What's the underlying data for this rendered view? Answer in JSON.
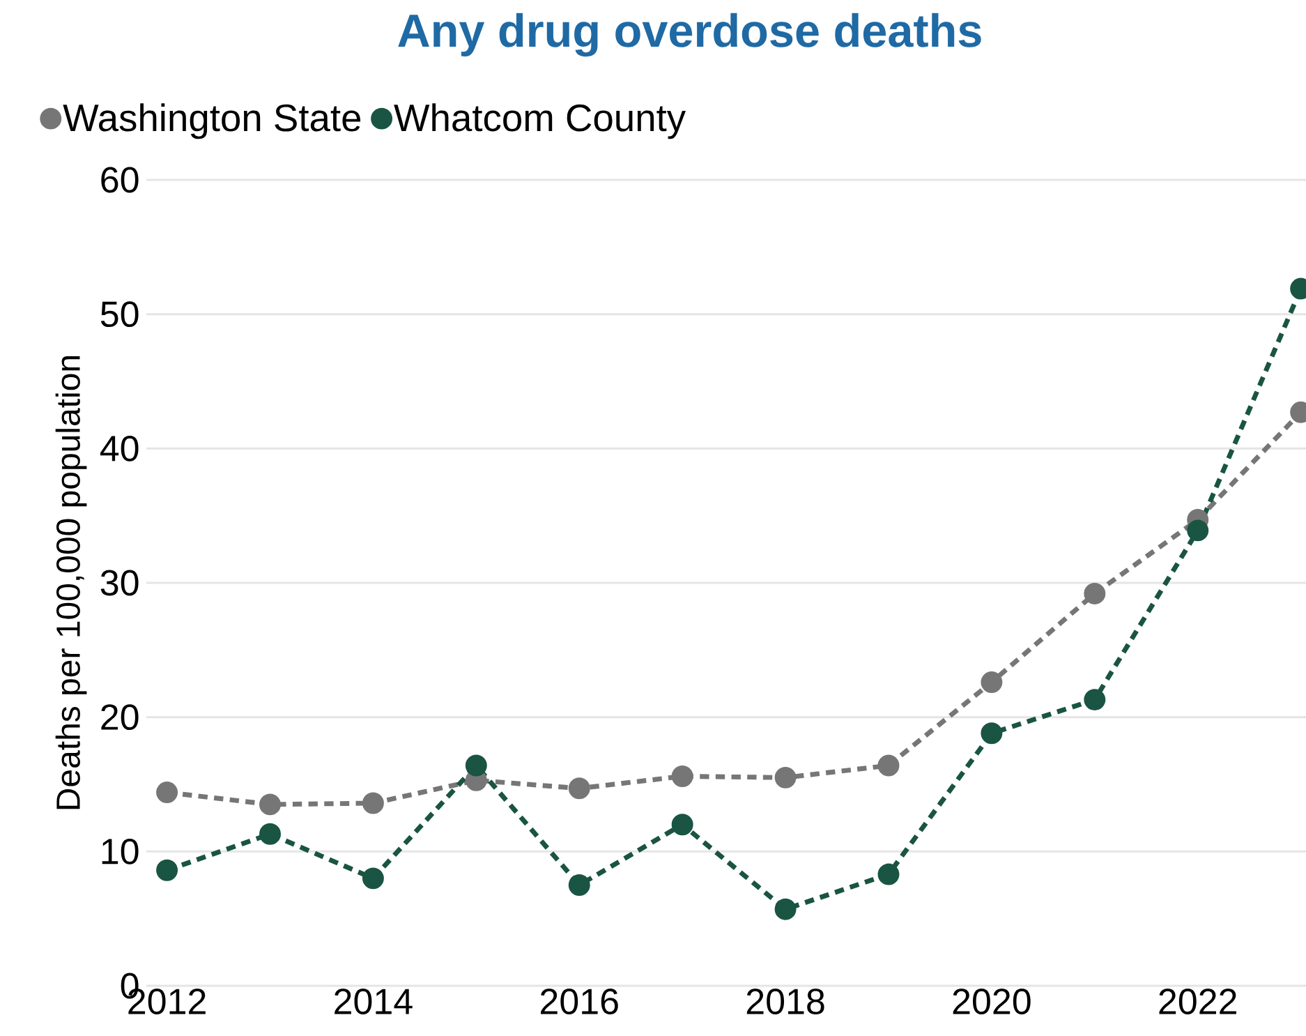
{
  "chart_data": {
    "type": "line",
    "title": "Any drug overdose deaths",
    "ylabel": "Deaths per 100,000 population",
    "x": [
      2012,
      2013,
      2014,
      2015,
      2016,
      2017,
      2018,
      2019,
      2020,
      2021,
      2022,
      2023
    ],
    "series": [
      {
        "name": "Washington State",
        "color": "#767676",
        "values": [
          14.4,
          13.5,
          13.6,
          15.3,
          14.7,
          15.6,
          15.5,
          16.4,
          22.6,
          29.2,
          34.7,
          42.7
        ]
      },
      {
        "name": "Whatcom County",
        "color": "#1a5443",
        "values": [
          8.6,
          11.3,
          8.0,
          16.4,
          7.5,
          12.0,
          5.7,
          8.3,
          18.8,
          21.3,
          33.9,
          51.9
        ]
      }
    ],
    "xlim": [
      2011.8,
      2023.05
    ],
    "xticks": [
      2012,
      2014,
      2016,
      2018,
      2020,
      2022
    ],
    "ylim": [
      0,
      60
    ],
    "yticks": [
      0,
      10,
      20,
      30,
      40,
      50,
      60
    ],
    "grid": "y",
    "legend": "top left",
    "marker": "circle",
    "line_style": "dashed"
  }
}
